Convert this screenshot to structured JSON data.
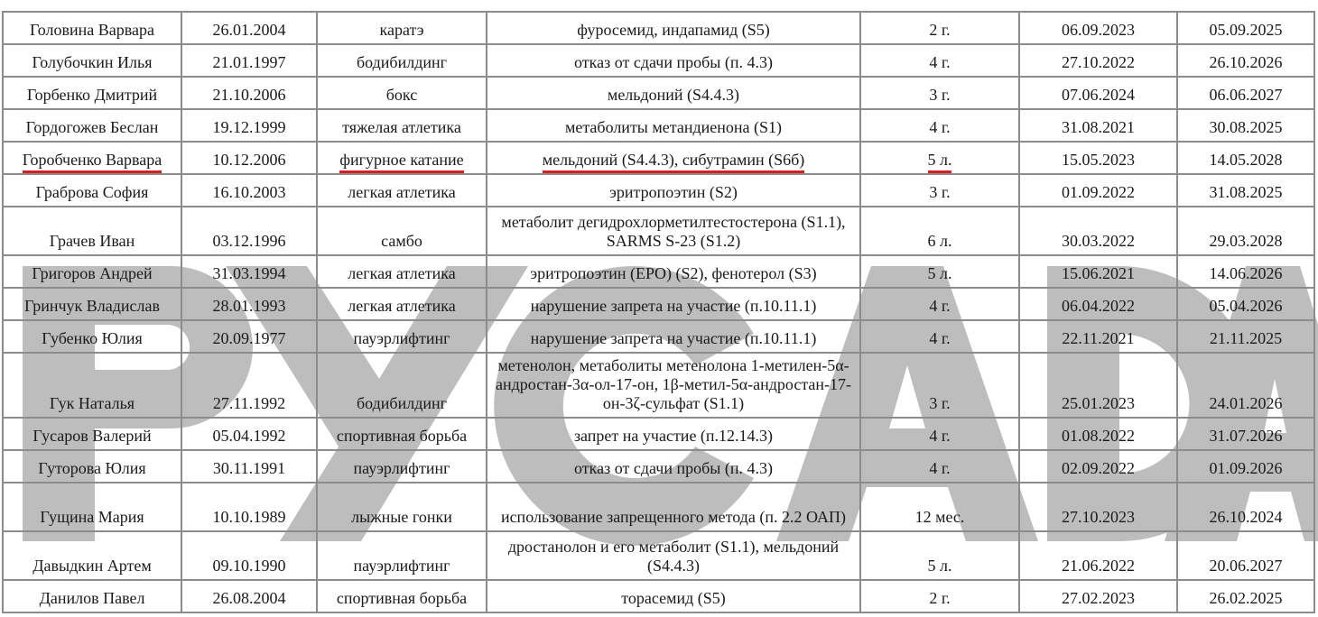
{
  "watermark": "РУСАДА",
  "highlight_color": "#d42020",
  "rows": [
    {
      "name": "Головина Варвара",
      "dob": "26.01.2004",
      "sport": "каратэ",
      "violation": "фуросемид, индапамид (S5)",
      "term": "2 г.",
      "start": "06.09.2023",
      "end": "05.09.2025"
    },
    {
      "name": "Голубочкин Илья",
      "dob": "21.01.1997",
      "sport": "бодибилдинг",
      "violation": "отказ от сдачи пробы (п. 4.3)",
      "term": "4 г.",
      "start": "27.10.2022",
      "end": "26.10.2026"
    },
    {
      "name": "Горбенко Дмитрий",
      "dob": "21.10.2006",
      "sport": "бокс",
      "violation": "мельдоний (S4.4.3)",
      "term": "3 г.",
      "start": "07.06.2024",
      "end": "06.06.2027"
    },
    {
      "name": "Гордогожев Беслан",
      "dob": "19.12.1999",
      "sport": "тяжелая атлетика",
      "violation": "метаболиты метандиенона (S1)",
      "term": "4 г.",
      "start": "31.08.2021",
      "end": "30.08.2025"
    },
    {
      "name": "Горобченко Варвара",
      "dob": "10.12.2006",
      "sport": "фигурное катание",
      "violation": "мельдоний (S4.4.3), сибутрамин (S6б)",
      "term": "5 л.",
      "start": "15.05.2023",
      "end": "14.05.2028",
      "highlighted": true
    },
    {
      "name": "Граброва София",
      "dob": "16.10.2003",
      "sport": "легкая атлетика",
      "violation": "эритропоэтин (S2)",
      "term": "3 г.",
      "start": "01.09.2022",
      "end": "31.08.2025"
    },
    {
      "name": "Грачев Иван",
      "dob": "03.12.1996",
      "sport": "самбо",
      "violation": "метаболит дегидрохлорметилтестостерона (S1.1), SARMS S-23 (S1.2)",
      "term": "6 л.",
      "start": "30.03.2022",
      "end": "29.03.2028"
    },
    {
      "name": "Григоров Андрей",
      "dob": "31.03.1994",
      "sport": "легкая атлетика",
      "violation": "эритропоэтин (EPO) (S2), фенотерол (S3)",
      "term": "5 л.",
      "start": "15.06.2021",
      "end": "14.06.2026"
    },
    {
      "name": "Гринчук Владислав",
      "dob": "28.01.1993",
      "sport": "легкая атлетика",
      "violation": "нарушение запрета на участие (п.10.11.1)",
      "term": "4 г.",
      "start": "06.04.2022",
      "end": "05.04.2026"
    },
    {
      "name": "Губенко Юлия",
      "dob": "20.09.1977",
      "sport": "пауэрлифтинг",
      "violation": "нарушение запрета на участие (п.10.11.1)",
      "term": "4 г.",
      "start": "22.11.2021",
      "end": "21.11.2025"
    },
    {
      "name": "Гук Наталья",
      "dob": "27.11.1992",
      "sport": "бодибилдинг",
      "violation": "метенолон, метаболиты метенолона 1-метилен-5α-андростан-3α-ол-17-он, 1β-метил-5α-андростан-17-он-3ζ-сульфат (S1.1)",
      "term": "3 г.",
      "start": "25.01.2023",
      "end": "24.01.2026"
    },
    {
      "name": "Гусаров Валерий",
      "dob": "05.04.1992",
      "sport": "спортивная борьба",
      "violation": "запрет на участие (п.12.14.3)",
      "term": "4 г.",
      "start": "01.08.2022",
      "end": "31.07.2026"
    },
    {
      "name": "Гуторова Юлия",
      "dob": "30.11.1991",
      "sport": "пауэрлифтинг",
      "violation": "отказ от сдачи пробы (п. 4.3)",
      "term": "4 г.",
      "start": "02.09.2022",
      "end": "01.09.2026"
    },
    {
      "name": "Гущина Мария",
      "dob": "10.10.1989",
      "sport": "лыжные гонки",
      "violation": "использование запрещенного метода (п. 2.2 ОАП)",
      "term": "12 мес.",
      "start": "27.10.2023",
      "end": "26.10.2024"
    },
    {
      "name": "Давыдкин Артем",
      "dob": "09.10.1990",
      "sport": "пауэрлифтинг",
      "violation": "дростанолон и его метаболит (S1.1), мельдоний (S4.4.3)",
      "term": "5 л.",
      "start": "21.06.2022",
      "end": "20.06.2027"
    },
    {
      "name": "Данилов Павел",
      "dob": "26.08.2004",
      "sport": "спортивная борьба",
      "violation": "торасемид (S5)",
      "term": "2 г.",
      "start": "27.02.2023",
      "end": "26.02.2025"
    }
  ]
}
